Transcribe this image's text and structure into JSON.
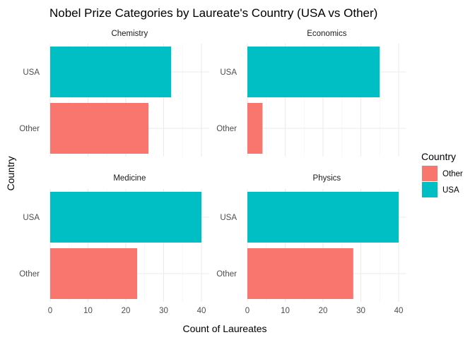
{
  "chart_data": {
    "type": "bar",
    "orientation": "horizontal",
    "title": "Nobel Prize Categories by Laureate's Country (USA vs Other)",
    "xlabel": "Count of Laureates",
    "ylabel": "Country",
    "xlim": [
      0,
      42
    ],
    "x_ticks": [
      "0",
      "10",
      "20",
      "30",
      "40"
    ],
    "categories": [
      "USA",
      "Other"
    ],
    "grid": true,
    "facets": [
      {
        "label": "Chemistry",
        "values": {
          "USA": 32,
          "Other": 26
        }
      },
      {
        "label": "Economics",
        "values": {
          "USA": 35,
          "Other": 4
        }
      },
      {
        "label": "Medicine",
        "values": {
          "USA": 40,
          "Other": 23
        }
      },
      {
        "label": "Physics",
        "values": {
          "USA": 40,
          "Other": 28
        }
      }
    ],
    "legend": {
      "title": "Country",
      "position": "right",
      "items": [
        {
          "label": "Other",
          "color": "#F8766D"
        },
        {
          "label": "USA",
          "color": "#00BFC4"
        }
      ]
    }
  }
}
